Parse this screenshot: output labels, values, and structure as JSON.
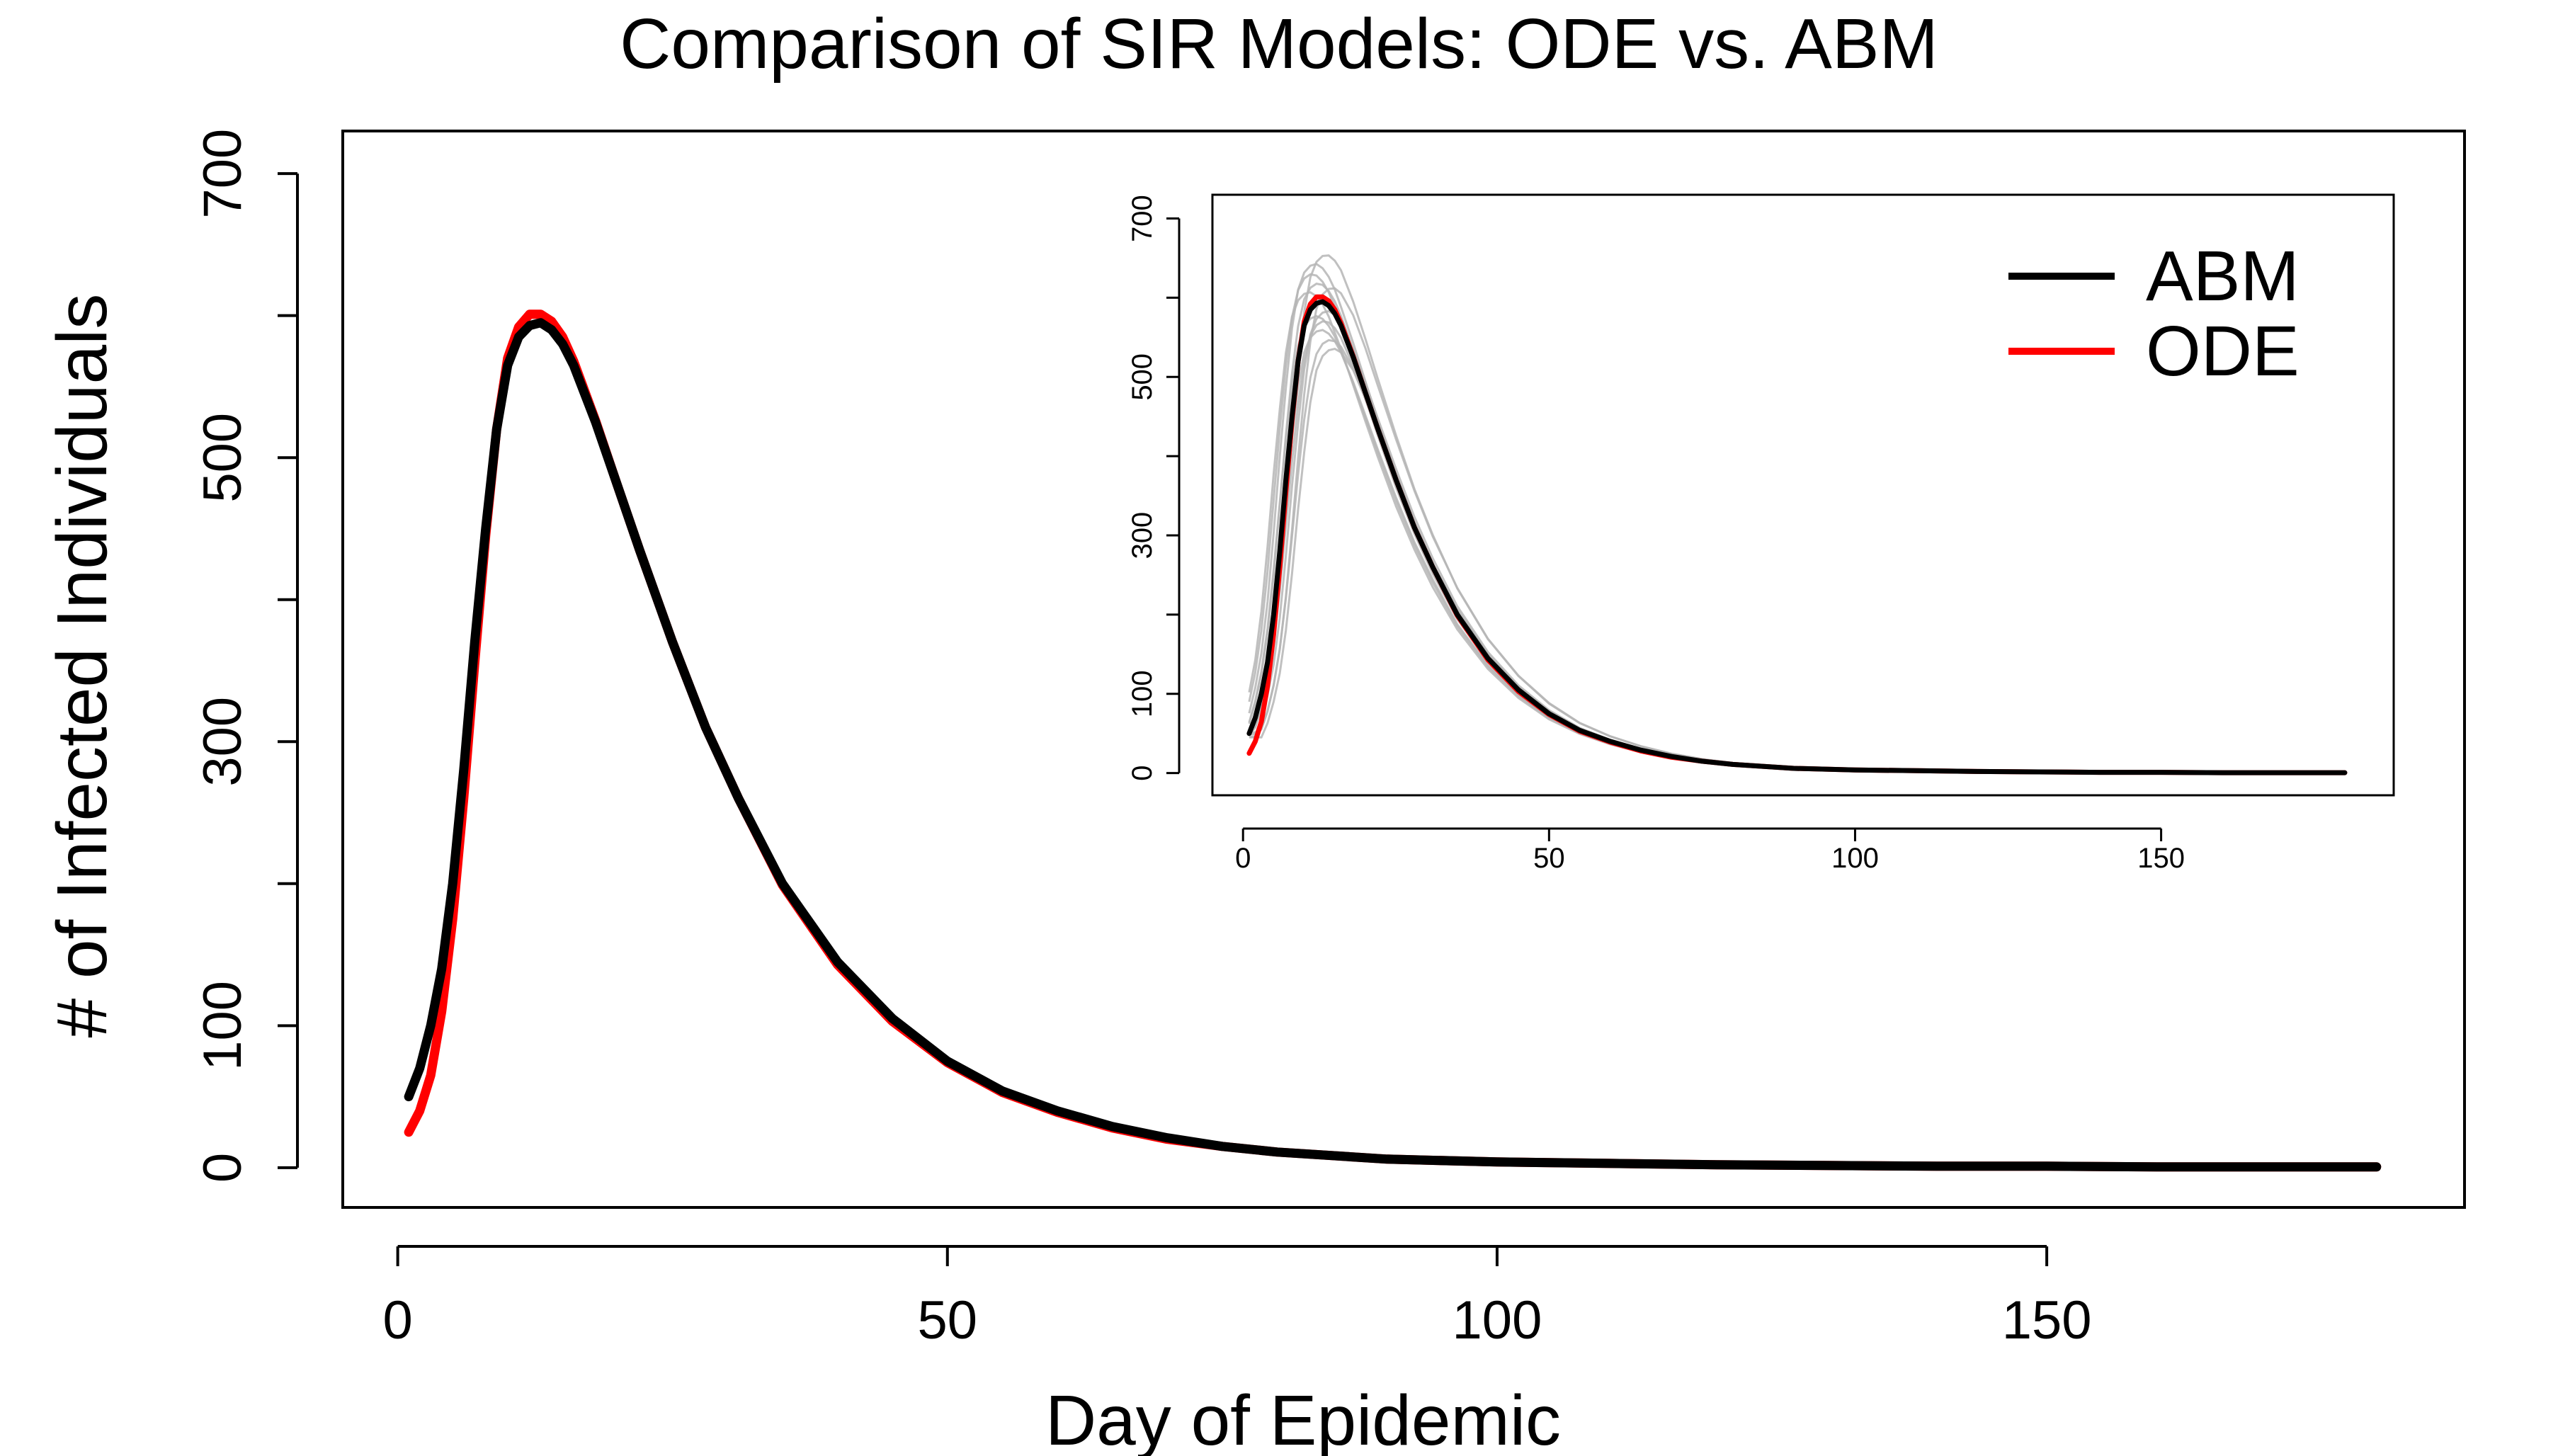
{
  "chart_data": {
    "type": "line",
    "title": "Comparison of SIR Models: ODE vs. ABM",
    "xlabel": "Day of Epidemic",
    "ylabel": "# of Infected Individuals",
    "xlim": [
      -5,
      188
    ],
    "ylim": [
      -28,
      730
    ],
    "x_ticks": [
      0,
      50,
      100,
      150
    ],
    "y_ticks": [
      0,
      100,
      300,
      500,
      700
    ],
    "grid": false,
    "legend": {
      "placement": "top-right",
      "entries": [
        "ABM",
        "ODE"
      ]
    },
    "colors": {
      "ABM": "#000000",
      "ODE": "#ff0000",
      "runs": "#b5b5b5"
    },
    "series": [
      {
        "name": "ABM",
        "x": [
          1,
          2,
          3,
          4,
          5,
          6,
          7,
          8,
          9,
          10,
          11,
          12,
          13,
          14,
          15,
          16,
          18,
          20,
          22,
          25,
          28,
          31,
          35,
          40,
          45,
          50,
          55,
          60,
          65,
          70,
          75,
          80,
          90,
          100,
          110,
          120,
          130,
          140,
          150,
          160,
          170,
          180
        ],
        "values": [
          50,
          70,
          100,
          140,
          200,
          280,
          370,
          450,
          520,
          565,
          585,
          593,
          595,
          590,
          580,
          565,
          525,
          480,
          435,
          370,
          310,
          260,
          200,
          145,
          105,
          75,
          54,
          40,
          29,
          21,
          15,
          11,
          6,
          4,
          3,
          2,
          1.5,
          1,
          1,
          0.5,
          0.5,
          0.5
        ]
      },
      {
        "name": "ODE",
        "x": [
          1,
          2,
          3,
          4,
          5,
          6,
          7,
          8,
          9,
          10,
          11,
          12,
          13,
          14,
          15,
          16,
          18,
          20,
          22,
          25,
          28,
          31,
          35,
          40,
          45,
          50,
          55,
          60,
          65,
          70,
          75,
          80,
          90,
          100,
          110,
          120,
          130,
          140,
          150,
          160,
          170,
          180
        ],
        "values": [
          25,
          40,
          65,
          110,
          175,
          260,
          355,
          445,
          520,
          570,
          592,
          601,
          601,
          596,
          585,
          568,
          526,
          480,
          435,
          370,
          310,
          260,
          199,
          143,
          103,
          74,
          53,
          39,
          28,
          20,
          15,
          11,
          6,
          4,
          3,
          2,
          1.5,
          1,
          1,
          0.5,
          0.5,
          0.5
        ]
      }
    ],
    "inset": {
      "type": "line",
      "xlim": [
        -5,
        188
      ],
      "ylim": [
        -28,
        730
      ],
      "x_ticks": [
        0,
        50,
        100,
        150
      ],
      "y_ticks": [
        0,
        100,
        300,
        500,
        700
      ],
      "runs_description_count": 12,
      "runs_peak_scale": [
        0.92,
        1.08,
        0.96,
        1.04,
        0.9,
        1.06,
        0.98,
        1.02,
        0.94,
        1.1,
        0.97,
        1.03
      ],
      "runs_day_shift": [
        1.5,
        -1.0,
        0.5,
        -0.5,
        2.0,
        -1.5,
        1.0,
        -2.0,
        0.0,
        0.8,
        -0.8,
        1.8
      ]
    }
  }
}
